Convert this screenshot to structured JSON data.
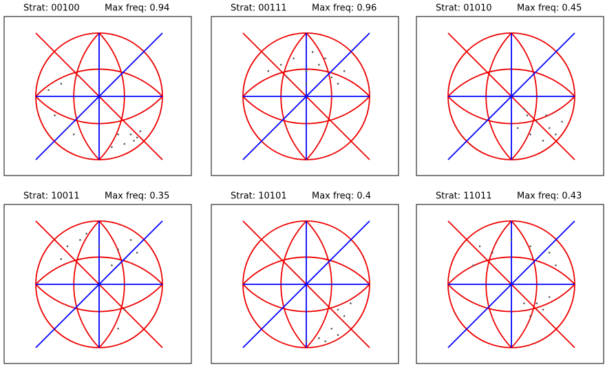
{
  "chart_data": [
    {
      "type": "scatter",
      "title": "Strat: 00100",
      "subtitle": "Max freq: 0.94",
      "x": [
        0.5,
        0.6,
        0.55,
        0.4,
        0.3,
        -0.5,
        -0.7,
        -0.8,
        -0.4,
        0.2,
        -0.6,
        0.65
      ],
      "y": [
        -0.6,
        -0.65,
        -0.7,
        -0.75,
        -0.6,
        -0.5,
        -0.3,
        0.1,
        -0.6,
        -0.8,
        0.2,
        -0.55
      ]
    },
    {
      "type": "scatter",
      "title": "Strat: 00111",
      "subtitle": "Max freq: 0.96",
      "x": [
        0,
        0.2,
        -0.2,
        0.4,
        -0.4,
        0.1,
        0.5,
        -0.3,
        0.3,
        0.6,
        -0.6,
        0
      ],
      "y": [
        0.4,
        0.5,
        0.6,
        0.3,
        0.5,
        0.7,
        0.2,
        0.3,
        0.6,
        0.4,
        0.4,
        0.2
      ]
    },
    {
      "type": "scatter",
      "title": "Strat: 01010",
      "subtitle": "Max freq: 0.45",
      "x": [
        0.2,
        0.4,
        0.6,
        0.8,
        0.3,
        0.5,
        0.7,
        0.1,
        0.25,
        0.55
      ],
      "y": [
        -0.2,
        -0.4,
        -0.5,
        -0.4,
        -0.6,
        -0.7,
        -0.6,
        -0.5,
        -0.3,
        -0.3
      ]
    },
    {
      "type": "scatter",
      "title": "Strat: 10011",
      "subtitle": "Max freq: 0.35",
      "x": [
        -0.5,
        -0.3,
        0,
        0.3,
        0.6,
        -0.6,
        0.2,
        0.4,
        0.3,
        -0.2,
        0.5
      ],
      "y": [
        0.6,
        0.7,
        0.6,
        0.55,
        0.5,
        0.4,
        0.3,
        -0.4,
        -0.7,
        0.8,
        0.7
      ]
    },
    {
      "type": "scatter",
      "title": "Strat: 10101",
      "subtitle": "Max freq: 0.4",
      "x": [
        0.5,
        0.6,
        0.4,
        0.2,
        0,
        0.5,
        0.7,
        0.3
      ],
      "y": [
        -0.4,
        -0.5,
        -0.7,
        -0.85,
        -0.9,
        -0.8,
        -0.3,
        -0.9
      ]
    },
    {
      "type": "scatter",
      "title": "Strat: 11011",
      "subtitle": "Max freq: 0.43",
      "x": [
        -0.5,
        -0.3,
        0,
        0.3,
        0.6,
        -0.6,
        0.2,
        0.4,
        0.6,
        0.5,
        0.3,
        0.7
      ],
      "y": [
        0.6,
        0.5,
        0.7,
        0.6,
        0.5,
        0.3,
        -0.3,
        -0.3,
        -0.2,
        -0.4,
        -0.5,
        0.3
      ]
    }
  ]
}
